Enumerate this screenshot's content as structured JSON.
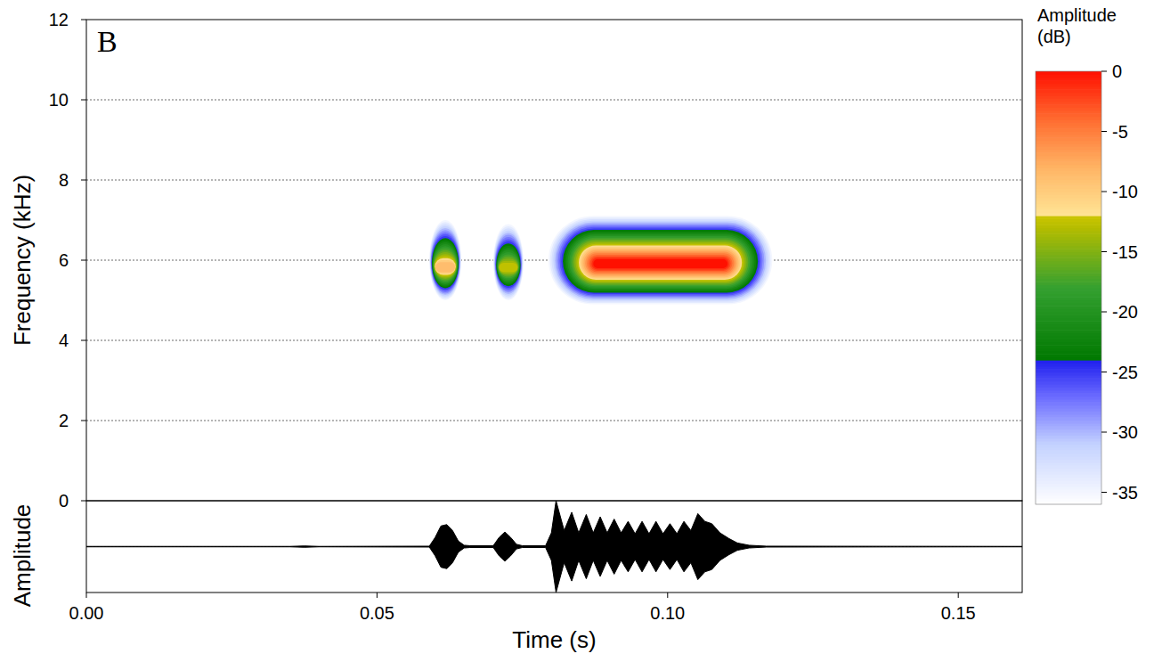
{
  "chart_data": [
    {
      "type": "spectrogram",
      "panel_label": "B",
      "y_label": "Frequency (kHz)",
      "xlim": [
        0,
        0.161
      ],
      "ylim": [
        0,
        12
      ],
      "yticks": [
        0,
        2,
        4,
        6,
        8,
        10,
        12
      ],
      "grid": true,
      "tick_labels": "y",
      "syllables": [
        {
          "t_start": 0.059,
          "t_end": 0.0645,
          "f_low": 5.0,
          "f_high": 7.0,
          "f_peak": 5.8,
          "peak_db": -8
        },
        {
          "t_start": 0.07,
          "t_end": 0.0752,
          "f_low": 5.0,
          "f_high": 6.9,
          "f_peak": 5.8,
          "peak_db": -12
        },
        {
          "t_start": 0.0795,
          "t_end": 0.118,
          "f_low": 4.9,
          "f_high": 7.1,
          "f_peak": 5.9,
          "peak_db": 0
        }
      ],
      "colorbar": {
        "title": "Amplitude (dB)",
        "range": [
          -36,
          0
        ],
        "ticks": [
          0,
          -5,
          -10,
          -15,
          -20,
          -25,
          -30,
          -35
        ]
      }
    },
    {
      "type": "area",
      "y_label": "Amplitude",
      "x_label": "Time (s)",
      "xlim": [
        0,
        0.161
      ],
      "ylim": [
        -1,
        1
      ],
      "xticks": [
        {
          "value": 0,
          "label": "0.00"
        },
        {
          "value": 0.05,
          "label": "0.05"
        },
        {
          "value": 0.1,
          "label": "0.10"
        },
        {
          "value": 0.15,
          "label": "0.15"
        }
      ],
      "tick_labels": "x",
      "color": "#000000",
      "x": [
        0,
        0.035,
        0.0375,
        0.04,
        0.059,
        0.06,
        0.061,
        0.062,
        0.063,
        0.064,
        0.065,
        0.066,
        0.07,
        0.071,
        0.072,
        0.073,
        0.074,
        0.075,
        0.079,
        0.08,
        0.0808,
        0.0822,
        0.0835,
        0.0847,
        0.086,
        0.0872,
        0.0884,
        0.0896,
        0.0908,
        0.092,
        0.0932,
        0.0944,
        0.0956,
        0.0968,
        0.098,
        0.0992,
        0.1004,
        0.1016,
        0.1028,
        0.104,
        0.1052,
        0.1064,
        0.1076,
        0.109,
        0.1105,
        0.112,
        0.114,
        0.117,
        0.161
      ],
      "values": [
        0.005,
        0.005,
        0.015,
        0.005,
        0.01,
        0.2,
        0.45,
        0.48,
        0.35,
        0.12,
        0.03,
        0.02,
        0.02,
        0.2,
        0.32,
        0.2,
        0.05,
        0.02,
        0.02,
        0.3,
        1.0,
        0.35,
        0.75,
        0.3,
        0.7,
        0.3,
        0.65,
        0.3,
        0.6,
        0.3,
        0.55,
        0.28,
        0.55,
        0.28,
        0.55,
        0.28,
        0.5,
        0.28,
        0.55,
        0.35,
        0.72,
        0.55,
        0.5,
        0.3,
        0.18,
        0.08,
        0.03,
        0.01,
        0.005
      ]
    }
  ]
}
